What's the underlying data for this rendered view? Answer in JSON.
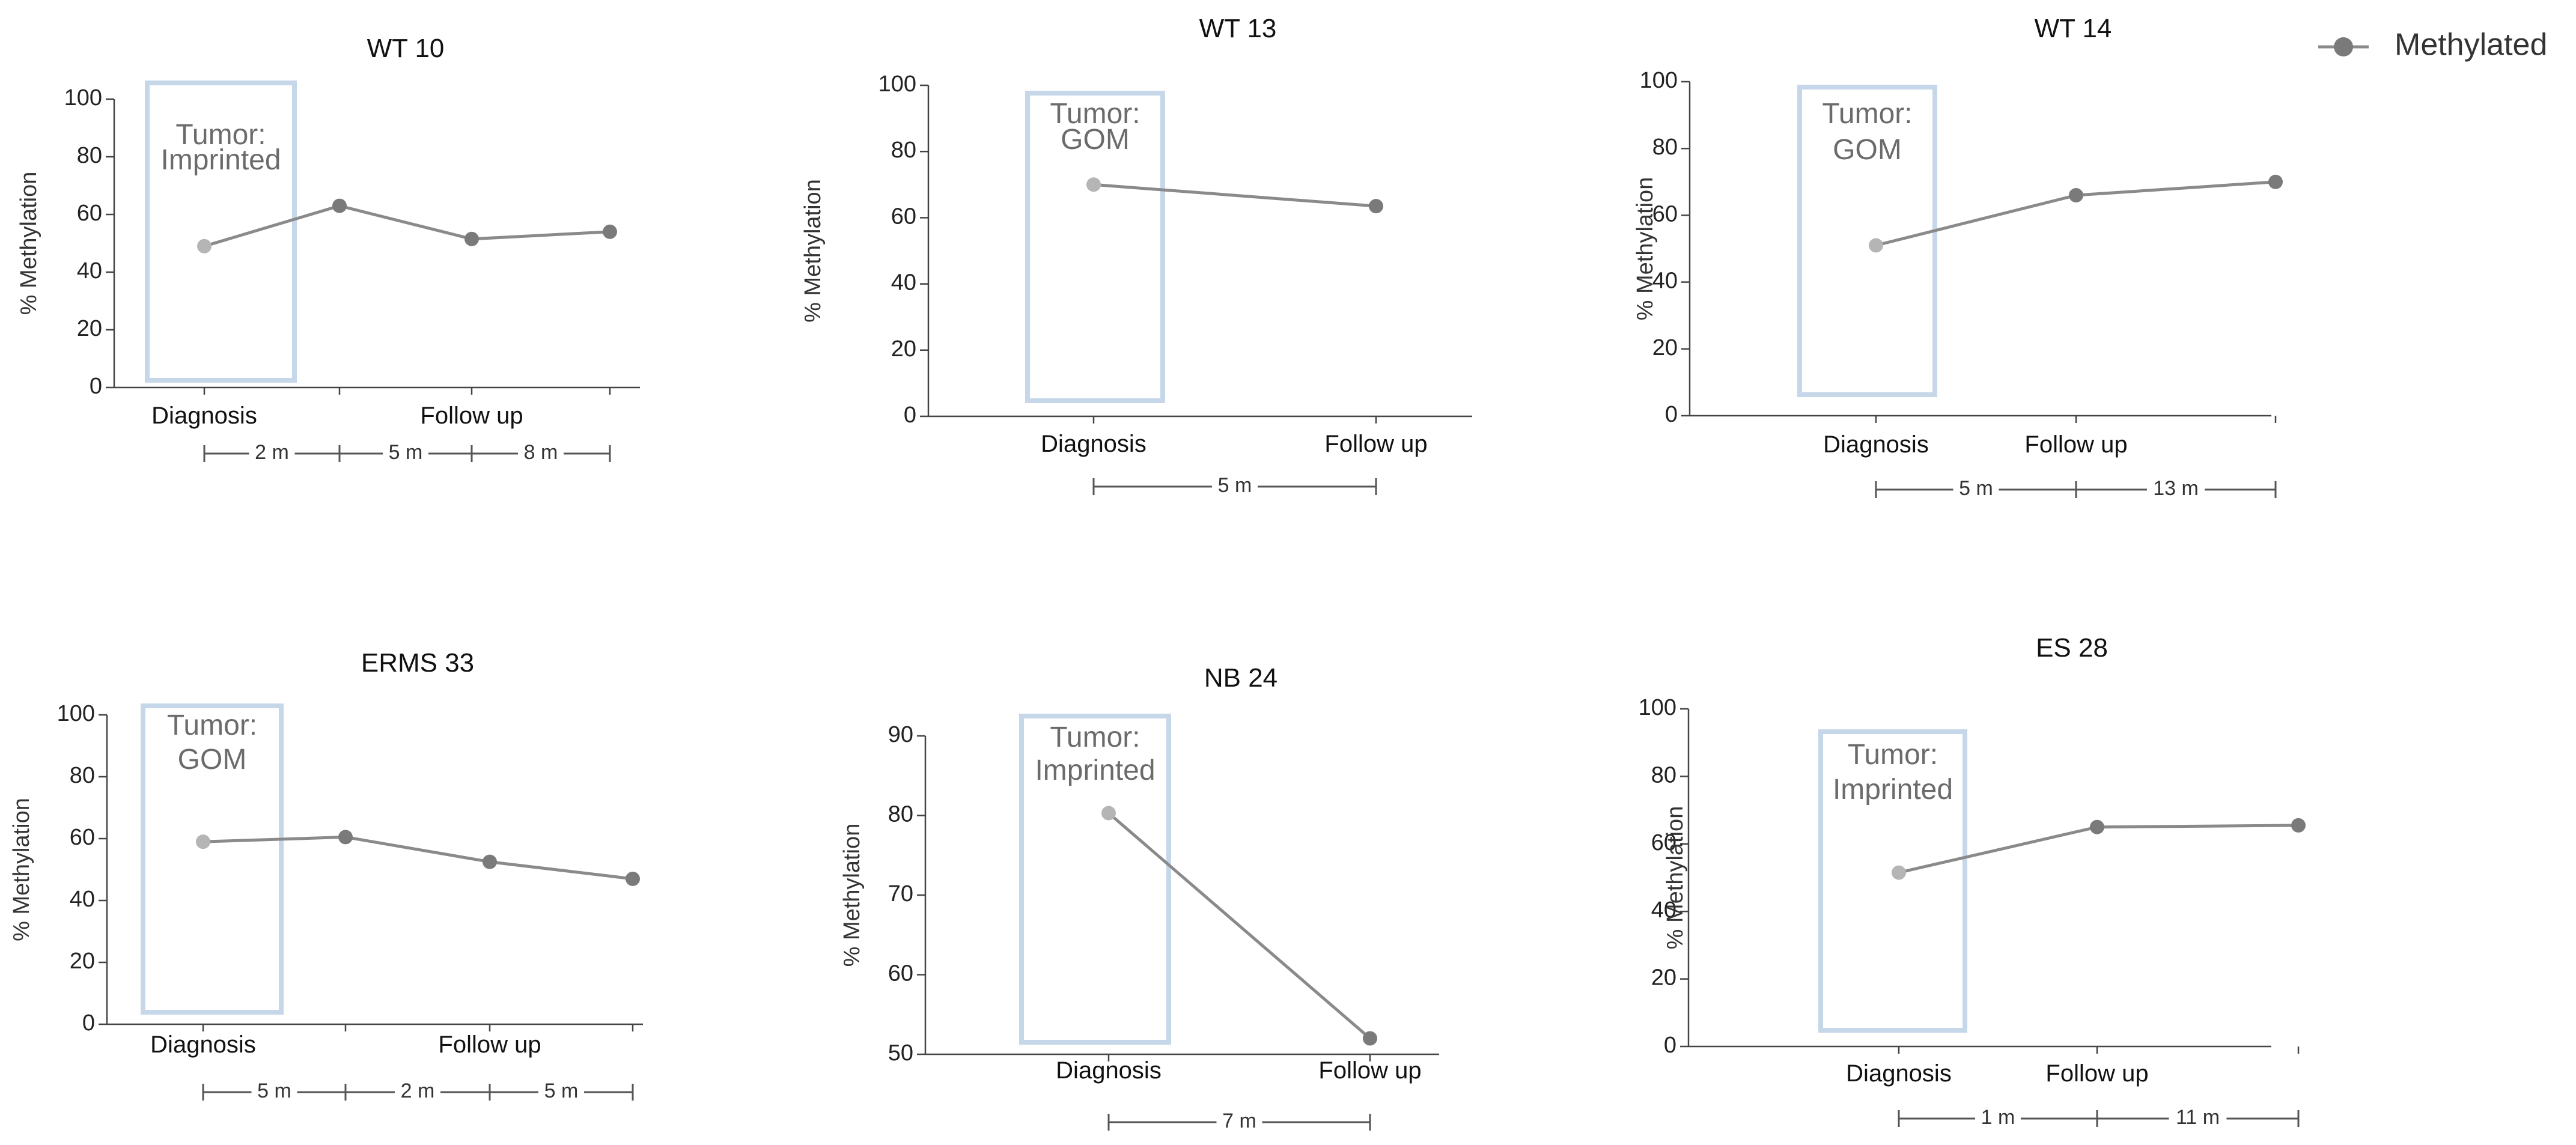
{
  "legend": {
    "label": "Methylated"
  },
  "colors": {
    "line": "#8a8a8a",
    "diagnosis_point": "#b5b5b5",
    "followup_point": "#7a7a7a",
    "tumor_box": "#c7d7ea"
  },
  "chart_data": [
    {
      "type": "line",
      "title": "WT 10",
      "ylabel": "% Methylation",
      "ylim": [
        0,
        100
      ],
      "yticks": [
        0,
        20,
        40,
        60,
        80,
        100
      ],
      "tumor_label": [
        "Tumor:",
        "Imprinted"
      ],
      "x_labels": [
        "Diagnosis",
        "Follow up"
      ],
      "series": [
        {
          "name": "Methylated",
          "values": [
            49,
            63,
            51.5,
            54
          ]
        }
      ],
      "intervals": [
        "2 m",
        "5 m",
        "8 m"
      ]
    },
    {
      "type": "line",
      "title": "WT 13",
      "ylabel": "% Methylation",
      "ylim": [
        0,
        100
      ],
      "yticks": [
        0,
        20,
        40,
        60,
        80,
        100
      ],
      "tumor_label": [
        "Tumor:",
        "GOM"
      ],
      "x_labels": [
        "Diagnosis",
        "Follow up"
      ],
      "series": [
        {
          "name": "Methylated",
          "values": [
            70,
            63.5
          ]
        }
      ],
      "intervals": [
        "5 m"
      ]
    },
    {
      "type": "line",
      "title": "WT 14",
      "ylabel": "% Methylation",
      "ylim": [
        0,
        100
      ],
      "yticks": [
        0,
        20,
        40,
        60,
        80,
        100
      ],
      "tumor_label": [
        "Tumor:",
        "GOM"
      ],
      "x_labels": [
        "Diagnosis",
        "Follow up"
      ],
      "series": [
        {
          "name": "Methylated",
          "values": [
            51,
            66,
            70
          ]
        }
      ],
      "intervals": [
        "5 m",
        "13 m"
      ]
    },
    {
      "type": "line",
      "title": "ERMS 33",
      "ylabel": "% Methylation",
      "ylim": [
        0,
        100
      ],
      "yticks": [
        0,
        20,
        40,
        60,
        80,
        100
      ],
      "tumor_label": [
        "Tumor:",
        "GOM"
      ],
      "x_labels": [
        "Diagnosis",
        "Follow up"
      ],
      "series": [
        {
          "name": "Methylated",
          "values": [
            59,
            60.5,
            52.5,
            47
          ]
        }
      ],
      "intervals": [
        "5 m",
        "2 m",
        "5 m"
      ]
    },
    {
      "type": "line",
      "title": "NB 24",
      "ylabel": "% Methylation",
      "ylim": [
        50,
        90
      ],
      "yticks": [
        50,
        60,
        70,
        80,
        90
      ],
      "tumor_label": [
        "Tumor:",
        "Imprinted"
      ],
      "x_labels": [
        "Diagnosis",
        "Follow up"
      ],
      "series": [
        {
          "name": "Methylated",
          "values": [
            80.3,
            52
          ]
        }
      ],
      "intervals": [
        "7 m"
      ]
    },
    {
      "type": "line",
      "title": "ES 28",
      "ylabel": "% Methylation",
      "ylim": [
        0,
        100
      ],
      "yticks": [
        0,
        20,
        40,
        60,
        80,
        100
      ],
      "tumor_label": [
        "Tumor:",
        "Imprinted"
      ],
      "x_labels": [
        "Diagnosis",
        "Follow up"
      ],
      "series": [
        {
          "name": "Methylated",
          "values": [
            51.5,
            65,
            65.5
          ]
        }
      ],
      "intervals": [
        "1 m",
        "11 m"
      ]
    }
  ]
}
